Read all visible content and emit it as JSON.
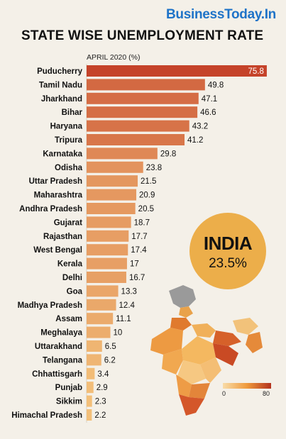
{
  "brand": "BusinessToday.In",
  "colors": {
    "background": "#f4f0e8",
    "brand": "#1e73c8",
    "bar_high": "#c5432a",
    "bar_low": "#f6c77e",
    "badge": "#ecae4a"
  },
  "india": {
    "label": "INDIA",
    "value": "23.5%"
  },
  "legend": {
    "min": "0",
    "max": "80"
  },
  "chart_data": {
    "type": "bar",
    "orientation": "horizontal",
    "title": "STATE WISE UNEMPLOYMENT RATE",
    "subtitle": "APRIL 2020 (%)",
    "xlim": [
      0,
      80
    ],
    "grid": false,
    "categories": [
      "Puducherry",
      "Tamil Nadu",
      "Jharkhand",
      "Bihar",
      "Haryana",
      "Tripura",
      "Karnataka",
      "Odisha",
      "Uttar Pradesh",
      "Maharashtra",
      "Andhra Pradesh",
      "Gujarat",
      "Rajasthan",
      "West Bengal",
      "Kerala",
      "Delhi",
      "Goa",
      "Madhya Pradesh",
      "Assam",
      "Meghalaya",
      "Uttarakhand",
      "Telangana",
      "Chhattisgarh",
      "Punjab",
      "Sikkim",
      "Himachal Pradesh"
    ],
    "values": [
      75.8,
      49.8,
      47.1,
      46.6,
      43.2,
      41.2,
      29.8,
      23.8,
      21.5,
      20.9,
      20.5,
      18.7,
      17.7,
      17.4,
      17,
      16.7,
      13.3,
      12.4,
      11.1,
      10,
      6.5,
      6.2,
      3.4,
      2.9,
      2.3,
      2.2
    ],
    "labels": [
      "75.8",
      "49.8",
      "47.1",
      "46.6",
      "43.2",
      "41.2",
      "29.8",
      "23.8",
      "21.5",
      "20.9",
      "20.5",
      "18.7",
      "17.7",
      "17.4",
      "17",
      "16.7",
      "13.3",
      "12.4",
      "11.1",
      "10",
      "6.5",
      "6.2",
      "3.4",
      "2.9",
      "2.3",
      "2.2"
    ]
  }
}
